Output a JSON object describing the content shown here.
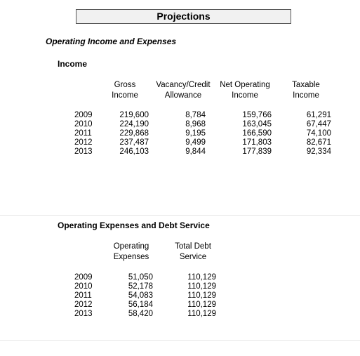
{
  "page_title": "Projections",
  "section_title": "Operating Income and Expenses",
  "income": {
    "title": "Income",
    "headers": [
      [
        "Gross",
        "Income"
      ],
      [
        "Vacancy/Credit",
        "Allowance"
      ],
      [
        "Net Operating",
        "Income"
      ],
      [
        "Taxable",
        "Income"
      ]
    ],
    "rows": [
      {
        "year": "2009",
        "values": [
          "219,600",
          "8,784",
          "159,766",
          "61,291"
        ]
      },
      {
        "year": "2010",
        "values": [
          "224,190",
          "8,968",
          "163,045",
          "67,447"
        ]
      },
      {
        "year": "2011",
        "values": [
          "229,868",
          "9,195",
          "166,590",
          "74,100"
        ]
      },
      {
        "year": "2012",
        "values": [
          "237,487",
          "9,499",
          "171,803",
          "82,671"
        ]
      },
      {
        "year": "2013",
        "values": [
          "246,103",
          "9,844",
          "177,839",
          "92,334"
        ]
      }
    ]
  },
  "expenses": {
    "title": "Operating Expenses and Debt Service",
    "headers": [
      [
        "Operating",
        "Expenses"
      ],
      [
        "Total Debt",
        "Service"
      ]
    ],
    "rows": [
      {
        "year": "2009",
        "values": [
          "51,050",
          "110,129"
        ]
      },
      {
        "year": "2010",
        "values": [
          "52,178",
          "110,129"
        ]
      },
      {
        "year": "2011",
        "values": [
          "54,083",
          "110,129"
        ]
      },
      {
        "year": "2012",
        "values": [
          "56,184",
          "110,129"
        ]
      },
      {
        "year": "2013",
        "values": [
          "58,420",
          "110,129"
        ]
      }
    ]
  }
}
